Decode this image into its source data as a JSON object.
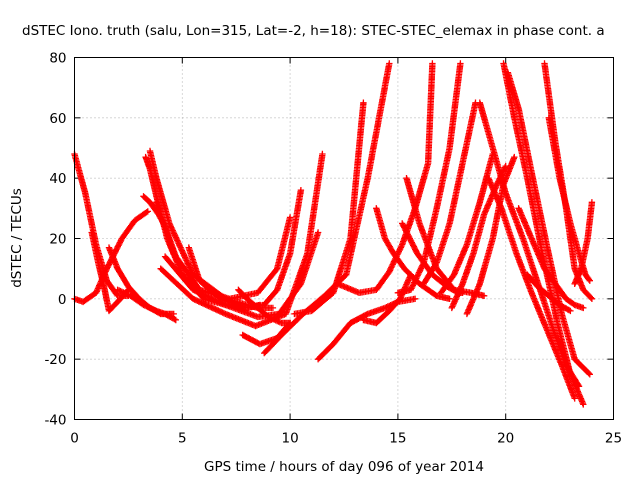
{
  "chart_data": {
    "type": "scatter",
    "title": "dSTEC Iono. truth (salu, Lon=315, Lat=-2, h=18): STEC-STEC_elemax in phase cont. a",
    "xlabel": "GPS time / hours of day 096 of year 2014",
    "ylabel": "dSTEC  / TECUs",
    "xlim": [
      0,
      25
    ],
    "ylim": [
      -40,
      80
    ],
    "x_ticks": [
      0,
      5,
      10,
      15,
      20,
      25
    ],
    "y_ticks": [
      -40,
      -20,
      0,
      20,
      40,
      60,
      80
    ],
    "grid": true,
    "marker": "+",
    "color": "#ff0000",
    "series": [
      {
        "x": [
          0.0,
          0.5,
          1.0,
          1.5,
          2.0,
          2.5
        ],
        "y": [
          48,
          35,
          18,
          6,
          1,
          1
        ]
      },
      {
        "x": [
          0.0,
          0.4,
          1.0,
          1.5,
          2.2,
          2.8,
          3.4
        ],
        "y": [
          0,
          -1,
          2,
          10,
          20,
          26,
          29
        ]
      },
      {
        "x": [
          0.8,
          1.1,
          1.4,
          1.6,
          2.0,
          2.5
        ],
        "y": [
          22,
          12,
          3,
          -4,
          -1,
          3
        ]
      },
      {
        "x": [
          1.6,
          2.0,
          2.5,
          3.0,
          3.5,
          4.0,
          4.6
        ],
        "y": [
          17,
          10,
          4,
          0,
          -3,
          -5,
          -5
        ]
      },
      {
        "x": [
          2.0,
          2.6,
          3.2,
          3.8,
          4.2,
          4.7
        ],
        "y": [
          3,
          1,
          -2,
          -4,
          -5,
          -7
        ]
      },
      {
        "x": [
          3.2,
          3.5,
          3.7,
          3.9,
          4.2,
          4.5,
          4.8
        ],
        "y": [
          34,
          32,
          30,
          28,
          24,
          18,
          12
        ]
      },
      {
        "x": [
          3.3,
          3.5,
          3.8,
          4.3,
          5.0,
          6.0,
          7.0,
          8.0,
          8.6
        ],
        "y": [
          47,
          43,
          34,
          20,
          8,
          0,
          -2,
          -3,
          -2
        ]
      },
      {
        "x": [
          3.5,
          3.8,
          4.4,
          5.5,
          7.0,
          8.5,
          9.2
        ],
        "y": [
          49,
          40,
          25,
          8,
          0,
          -3,
          -3
        ]
      },
      {
        "x": [
          3.8,
          4.6,
          5.8,
          7.2,
          8.5,
          9.4,
          10.0
        ],
        "y": [
          32,
          15,
          3,
          0,
          2,
          10,
          27
        ]
      },
      {
        "x": [
          5.3,
          5.8,
          6.8,
          8.0,
          8.8,
          9.4,
          10.0,
          10.5
        ],
        "y": [
          17,
          6,
          0,
          -3,
          -2,
          3,
          15,
          36
        ]
      },
      {
        "x": [
          4.2,
          5.5,
          7.0,
          8.5,
          9.5,
          10.5,
          11.3
        ],
        "y": [
          14,
          3,
          -2,
          -6,
          -5,
          5,
          22
        ]
      },
      {
        "x": [
          4.0,
          5.5,
          7.0,
          8.4,
          9.8,
          10.8,
          11.5
        ],
        "y": [
          10,
          0,
          -5,
          -9,
          -5,
          15,
          48
        ]
      },
      {
        "x": [
          7.6,
          8.0,
          8.5,
          9.0,
          9.6,
          10.0
        ],
        "y": [
          3,
          0,
          -3,
          -6,
          -8,
          -8
        ]
      },
      {
        "x": [
          7.8,
          8.6,
          9.4,
          10.0
        ],
        "y": [
          -12,
          -15,
          -13,
          -8
        ]
      },
      {
        "x": [
          8.8,
          9.6,
          10.6,
          11.6,
          12.6,
          13.6,
          14.6
        ],
        "y": [
          -18,
          -12,
          -5,
          1,
          8,
          40,
          78
        ]
      },
      {
        "x": [
          10.2,
          11.0,
          12.0,
          12.8,
          13.4
        ],
        "y": [
          -5,
          -4,
          2,
          20,
          65
        ]
      },
      {
        "x": [
          11.3,
          12.0,
          12.8,
          13.6,
          14.4,
          15.0,
          15.8
        ],
        "y": [
          -20,
          -15,
          -8,
          -5,
          -3,
          -1,
          0
        ]
      },
      {
        "x": [
          12.2,
          13.2,
          14.0,
          14.6,
          15.2,
          15.8,
          16.4,
          16.6
        ],
        "y": [
          5,
          2,
          3,
          9,
          18,
          30,
          45,
          78
        ]
      },
      {
        "x": [
          13.4,
          14.0,
          14.6,
          15.1,
          15.6
        ],
        "y": [
          -7,
          -8,
          -4,
          0,
          8
        ]
      },
      {
        "x": [
          14.0,
          14.4,
          14.8,
          15.3,
          16.0,
          16.8,
          17.4
        ],
        "y": [
          30,
          20,
          15,
          10,
          5,
          1,
          0
        ]
      },
      {
        "x": [
          15.0,
          15.6,
          16.2,
          16.8,
          17.4,
          17.9
        ],
        "y": [
          2,
          3,
          12,
          30,
          50,
          78
        ]
      },
      {
        "x": [
          15.4,
          16.0,
          16.8,
          17.6,
          18.4,
          19.0
        ],
        "y": [
          40,
          25,
          10,
          3,
          2,
          1
        ]
      },
      {
        "x": [
          15.2,
          15.9,
          16.6,
          17.3,
          17.8,
          18.0
        ],
        "y": [
          25,
          15,
          8,
          4,
          2,
          2
        ]
      },
      {
        "x": [
          16.2,
          16.8,
          17.4,
          18.0,
          18.6
        ],
        "y": [
          5,
          12,
          25,
          45,
          65
        ]
      },
      {
        "x": [
          17.0,
          17.6,
          18.2,
          18.8,
          19.4
        ],
        "y": [
          2,
          8,
          18,
          32,
          48
        ]
      },
      {
        "x": [
          17.5,
          18.0,
          18.5,
          19.0,
          19.6,
          20.0
        ],
        "y": [
          -3,
          5,
          15,
          28,
          38,
          44
        ]
      },
      {
        "x": [
          18.2,
          18.8,
          19.4,
          19.9,
          20.4
        ],
        "y": [
          -5,
          5,
          20,
          38,
          47
        ]
      },
      {
        "x": [
          18.8,
          19.4,
          20.0,
          20.8,
          21.5,
          22.2,
          22.8,
          23.4
        ],
        "y": [
          65,
          50,
          35,
          20,
          5,
          -10,
          -22,
          -29
        ]
      },
      {
        "x": [
          19.2,
          19.8,
          20.5,
          21.2,
          21.9,
          22.6,
          23.2
        ],
        "y": [
          40,
          30,
          15,
          2,
          -10,
          -22,
          -33
        ]
      },
      {
        "x": [
          19.9,
          20.4,
          21.0,
          21.7,
          22.4,
          23.0,
          23.6
        ],
        "y": [
          78,
          60,
          40,
          15,
          -8,
          -25,
          -35
        ]
      },
      {
        "x": [
          20.1,
          20.6,
          21.2,
          21.9,
          22.6,
          23.2,
          23.9
        ],
        "y": [
          75,
          63,
          42,
          18,
          -5,
          -20,
          -25
        ]
      },
      {
        "x": [
          20.6,
          21.2,
          21.8,
          22.4,
          22.8,
          23.2,
          23.6
        ],
        "y": [
          30,
          20,
          10,
          4,
          0,
          -2,
          -3
        ]
      },
      {
        "x": [
          21.8,
          22.3,
          22.8,
          23.2,
          23.6,
          24.0
        ],
        "y": [
          78,
          52,
          30,
          10,
          3,
          0
        ]
      },
      {
        "x": [
          22.0,
          22.5,
          23.0,
          23.4,
          23.7,
          23.9
        ],
        "y": [
          60,
          40,
          25,
          15,
          8,
          6
        ]
      },
      {
        "x": [
          23.2,
          23.5,
          23.8,
          24.0
        ],
        "y": [
          5,
          10,
          20,
          32
        ]
      },
      {
        "x": [
          21.0,
          21.5,
          22.0,
          22.5,
          23.0
        ],
        "y": [
          8,
          4,
          1,
          -2,
          -4
        ]
      }
    ]
  }
}
